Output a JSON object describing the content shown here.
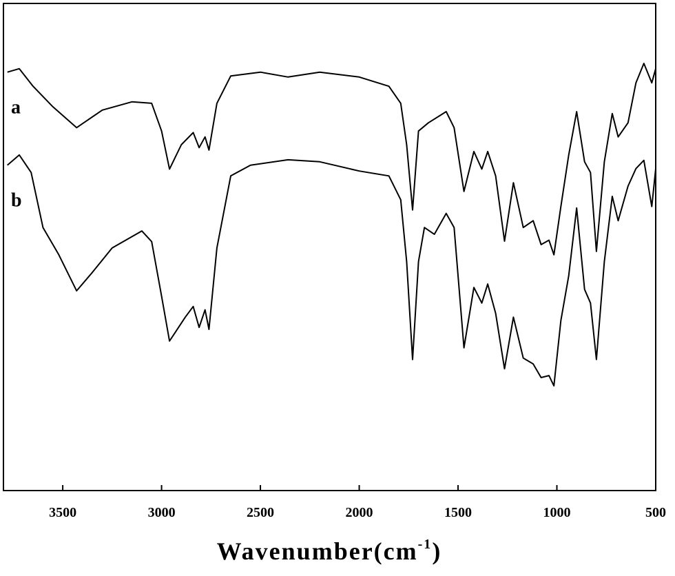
{
  "chart_data": {
    "type": "line",
    "xlabel": [
      "Wavenumber(cm",
      "-1",
      ")"
    ],
    "xlim": [
      3800,
      500
    ],
    "ylim": [
      0,
      100
    ],
    "xticks": [
      3500,
      3000,
      2500,
      2000,
      1500,
      1000,
      500
    ],
    "series": [
      {
        "name": "a",
        "color": "#000000",
        "x": [
          3780,
          3720,
          3650,
          3550,
          3430,
          3300,
          3150,
          3050,
          3000,
          2960,
          2900,
          2840,
          2810,
          2780,
          2760,
          2720,
          2650,
          2500,
          2360,
          2200,
          2000,
          1850,
          1790,
          1760,
          1730,
          1700,
          1650,
          1560,
          1520,
          1470,
          1420,
          1380,
          1350,
          1310,
          1265,
          1220,
          1170,
          1120,
          1080,
          1040,
          1015,
          980,
          940,
          900,
          860,
          830,
          800,
          760,
          720,
          690,
          640,
          600,
          560,
          520,
          500
        ],
        "values": [
          85.9,
          86.6,
          83.0,
          78.8,
          74.5,
          78.1,
          79.8,
          79.5,
          73.8,
          66.0,
          71.0,
          73.5,
          70.4,
          72.6,
          69.9,
          79.5,
          85.1,
          85.9,
          84.9,
          85.9,
          84.9,
          83.0,
          79.5,
          71.0,
          57.6,
          73.8,
          75.5,
          77.8,
          74.5,
          61.4,
          69.6,
          66.0,
          69.6,
          64.6,
          51.2,
          63.2,
          54.0,
          55.4,
          50.5,
          51.4,
          48.4,
          58.3,
          68.9,
          77.8,
          67.5,
          65.3,
          49.1,
          67.5,
          77.4,
          72.6,
          75.5,
          83.7,
          87.7,
          83.7,
          86.6
        ]
      },
      {
        "name": "b",
        "color": "#000000",
        "x": [
          3780,
          3720,
          3660,
          3600,
          3520,
          3430,
          3350,
          3250,
          3100,
          3050,
          3000,
          2960,
          2880,
          2840,
          2810,
          2780,
          2760,
          2720,
          2650,
          2550,
          2360,
          2200,
          2000,
          1850,
          1790,
          1760,
          1730,
          1700,
          1670,
          1620,
          1560,
          1520,
          1470,
          1420,
          1380,
          1350,
          1310,
          1265,
          1220,
          1170,
          1120,
          1080,
          1040,
          1015,
          980,
          940,
          900,
          860,
          830,
          800,
          760,
          720,
          690,
          640,
          600,
          560,
          520,
          500
        ],
        "values": [
          66.8,
          68.9,
          65.3,
          54.0,
          48.4,
          41.0,
          44.8,
          49.8,
          53.3,
          51.1,
          39.9,
          30.7,
          35.6,
          37.8,
          33.5,
          37.1,
          33.1,
          49.8,
          64.6,
          66.8,
          67.9,
          67.5,
          65.6,
          64.6,
          59.7,
          47.0,
          26.9,
          47.0,
          54.0,
          52.6,
          56.9,
          54.0,
          29.3,
          41.7,
          38.5,
          42.4,
          36.4,
          25.0,
          35.6,
          27.2,
          26.0,
          23.2,
          23.6,
          21.5,
          34.9,
          44.1,
          58.0,
          41.3,
          38.5,
          26.9,
          47.0,
          60.4,
          55.4,
          62.5,
          66.1,
          67.8,
          58.3,
          66.1
        ]
      }
    ]
  }
}
